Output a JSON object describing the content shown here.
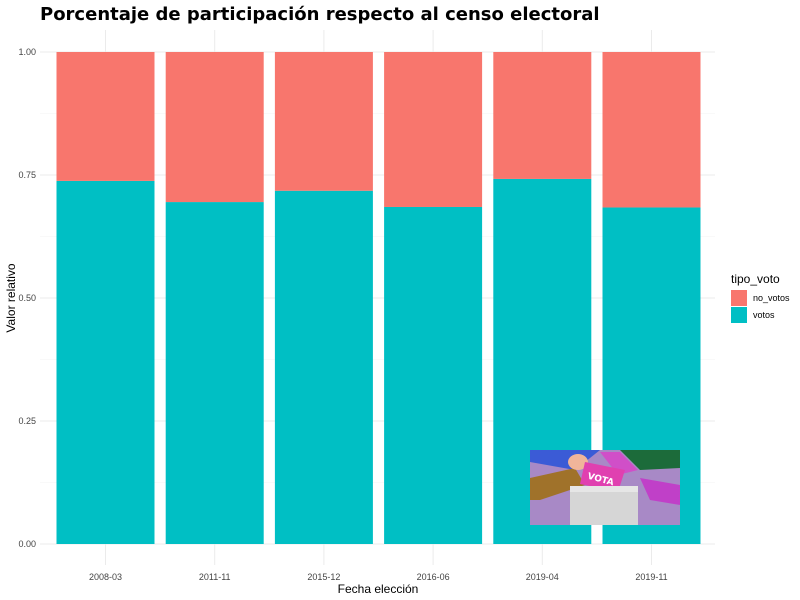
{
  "chart_data": {
    "type": "bar",
    "stacked": true,
    "title": "Porcentaje de participación respecto al censo electoral",
    "xlabel": "Fecha elección",
    "ylabel": "Valor relativo",
    "categories": [
      "2008-03",
      "2011-11",
      "2015-12",
      "2016-06",
      "2019-04",
      "2019-11"
    ],
    "series": [
      {
        "name": "votos",
        "color": "#00bfc4",
        "values": [
          0.738,
          0.695,
          0.718,
          0.685,
          0.742,
          0.684
        ]
      },
      {
        "name": "no_votos",
        "color": "#f8766d",
        "values": [
          0.262,
          0.305,
          0.282,
          0.315,
          0.258,
          0.316
        ]
      }
    ],
    "ylim": [
      0,
      1
    ],
    "yticks": [
      "0.00",
      "0.25",
      "0.50",
      "0.75",
      "1.00"
    ],
    "legend": {
      "title": "tipo_voto",
      "position": "right",
      "items": [
        {
          "label": "no_votos",
          "color": "#f8766d"
        },
        {
          "label": "votos",
          "color": "#00bfc4"
        }
      ]
    },
    "grid": true
  },
  "inset_image": {
    "text": "VOTA"
  }
}
